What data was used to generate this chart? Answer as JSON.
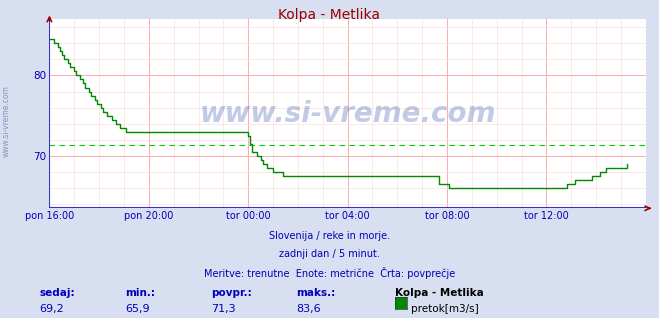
{
  "title": "Kolpa - Metlika",
  "background_color": "#d8dff0",
  "plot_background": "#ffffff",
  "line_color": "#008800",
  "avg_line_color": "#00cc00",
  "avg_value": 71.3,
  "ymin": 63.5,
  "ymax": 87.0,
  "yticks": [
    70,
    80
  ],
  "tick_label_color": "#0000bb",
  "watermark_color": "#3355aa",
  "footer_lines": [
    "Slovenija / reke in morje.",
    "zadnji dan / 5 minut.",
    "Meritve: trenutne  Enote: metrične  Črta: povprečje"
  ],
  "stats_labels": [
    "sedaj:",
    "min.:",
    "povpr.:",
    "maks.:"
  ],
  "stats_values": [
    "69,2",
    "65,9",
    "71,3",
    "83,6"
  ],
  "legend_label": "pretok[m3/s]",
  "legend_station": "Kolpa - Metlika",
  "x_tick_labels": [
    "pon 16:00",
    "pon 20:00",
    "tor 00:00",
    "tor 04:00",
    "tor 08:00",
    "tor 12:00"
  ],
  "x_tick_positions": [
    0,
    48,
    96,
    144,
    192,
    240
  ],
  "total_points": 288,
  "watermark_text": "www.si-vreme.com",
  "grid_color_major": "#ffaaaa",
  "grid_color_minor": "#ffdddd",
  "axis_color": "#3333cc",
  "arrow_color": "#990000",
  "sidewater_color": "#6677aa",
  "data_y": [
    84.5,
    84.5,
    84.0,
    84.0,
    83.5,
    83.0,
    82.5,
    82.0,
    82.0,
    81.5,
    81.0,
    81.0,
    80.5,
    80.0,
    80.0,
    79.5,
    79.0,
    78.5,
    78.5,
    78.0,
    77.5,
    77.5,
    77.0,
    76.5,
    76.5,
    76.0,
    75.5,
    75.5,
    75.0,
    75.0,
    74.5,
    74.5,
    74.0,
    74.0,
    73.5,
    73.5,
    73.5,
    73.0,
    73.0,
    73.0,
    73.0,
    73.0,
    73.0,
    73.0,
    73.0,
    73.0,
    73.0,
    73.0,
    73.0,
    73.0,
    73.0,
    73.0,
    73.0,
    73.0,
    73.0,
    73.0,
    73.0,
    73.0,
    73.0,
    73.0,
    73.0,
    73.0,
    73.0,
    73.0,
    73.0,
    73.0,
    73.0,
    73.0,
    73.0,
    73.0,
    73.0,
    73.0,
    73.0,
    73.0,
    73.0,
    73.0,
    73.0,
    73.0,
    73.0,
    73.0,
    73.0,
    73.0,
    73.0,
    73.0,
    73.0,
    73.0,
    73.0,
    73.0,
    73.0,
    73.0,
    73.0,
    73.0,
    73.0,
    73.0,
    73.0,
    73.0,
    72.5,
    71.5,
    70.5,
    70.5,
    70.0,
    70.0,
    69.5,
    69.0,
    69.0,
    68.5,
    68.5,
    68.5,
    68.0,
    68.0,
    68.0,
    68.0,
    68.0,
    67.5,
    67.5,
    67.5,
    67.5,
    67.5,
    67.5,
    67.5,
    67.5,
    67.5,
    67.5,
    67.5,
    67.5,
    67.5,
    67.5,
    67.5,
    67.5,
    67.5,
    67.5,
    67.5,
    67.5,
    67.5,
    67.5,
    67.5,
    67.5,
    67.5,
    67.5,
    67.5,
    67.5,
    67.5,
    67.5,
    67.5,
    67.5,
    67.5,
    67.5,
    67.5,
    67.5,
    67.5,
    67.5,
    67.5,
    67.5,
    67.5,
    67.5,
    67.5,
    67.5,
    67.5,
    67.5,
    67.5,
    67.5,
    67.5,
    67.5,
    67.5,
    67.5,
    67.5,
    67.5,
    67.5,
    67.5,
    67.5,
    67.5,
    67.5,
    67.5,
    67.5,
    67.5,
    67.5,
    67.5,
    67.5,
    67.5,
    67.5,
    67.5,
    67.5,
    67.5,
    67.5,
    67.5,
    67.5,
    67.5,
    67.5,
    66.5,
    66.5,
    66.5,
    66.5,
    66.5,
    66.0,
    66.0,
    66.0,
    66.0,
    66.0,
    66.0,
    66.0,
    66.0,
    66.0,
    66.0,
    66.0,
    66.0,
    66.0,
    66.0,
    66.0,
    66.0,
    66.0,
    66.0,
    66.0,
    66.0,
    66.0,
    66.0,
    66.0,
    66.0,
    66.0,
    66.0,
    66.0,
    66.0,
    66.0,
    66.0,
    66.0,
    66.0,
    66.0,
    66.0,
    66.0,
    66.0,
    66.0,
    66.0,
    66.0,
    66.0,
    66.0,
    66.0,
    66.0,
    66.0,
    66.0,
    66.0,
    66.0,
    66.0,
    66.0,
    66.0,
    66.0,
    66.0,
    66.0,
    66.0,
    66.0,
    66.0,
    66.0,
    66.5,
    66.5,
    66.5,
    66.5,
    67.0,
    67.0,
    67.0,
    67.0,
    67.0,
    67.0,
    67.0,
    67.0,
    67.5,
    67.5,
    67.5,
    67.5,
    68.0,
    68.0,
    68.0,
    68.5,
    68.5,
    68.5,
    68.5,
    68.5,
    68.5,
    68.5,
    68.5,
    68.5,
    68.5,
    69.0
  ]
}
